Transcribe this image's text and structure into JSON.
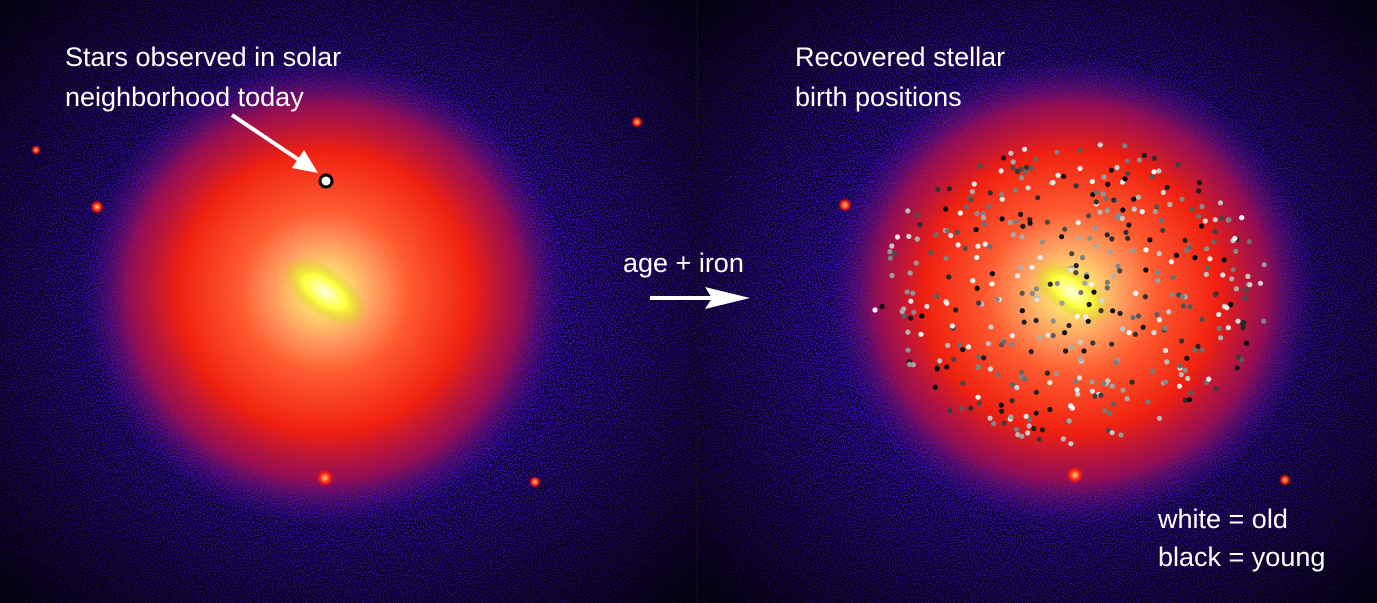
{
  "left_panel": {
    "caption": [
      "Stars observed in solar",
      "neighborhood today"
    ]
  },
  "middle": {
    "label": "age + iron"
  },
  "right_panel": {
    "caption": [
      "Recovered stellar",
      "birth positions"
    ],
    "legend": [
      "white = old",
      "black = young"
    ]
  }
}
